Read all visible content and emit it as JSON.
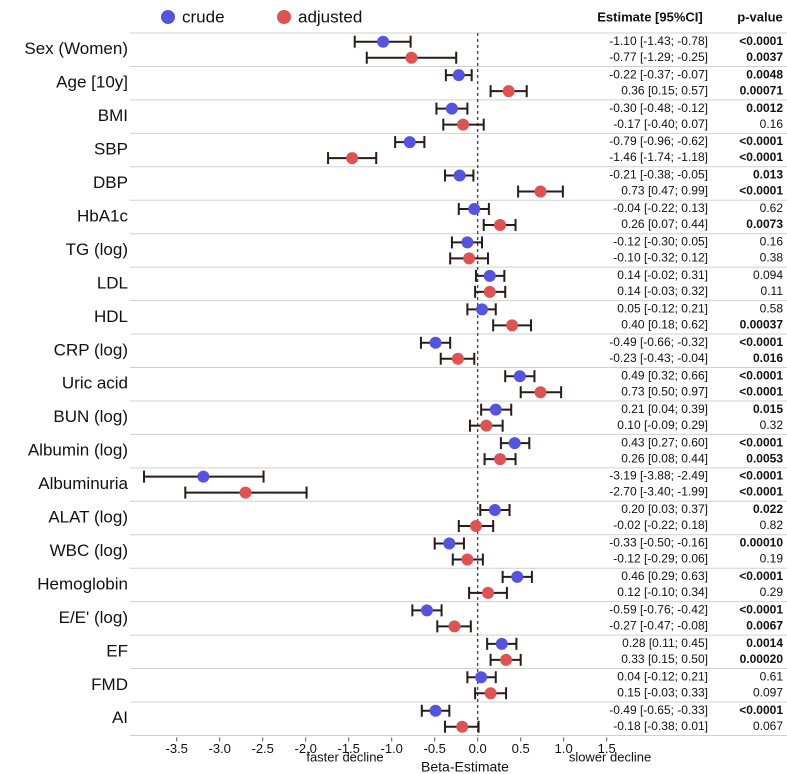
{
  "chart_data": {
    "type": "forest",
    "x_label": "Beta-Estimate",
    "left_note": "faster decline",
    "right_note": "slower decline",
    "table_headers": [
      "Estimate [95%CI]",
      "p-value"
    ],
    "categories": [
      "Sex (Women)",
      "Age [10y]",
      "BMI",
      "SBP",
      "DBP",
      "HbA1c",
      "TG (log)",
      "LDL",
      "HDL",
      "CRP (log)",
      "Uric acid",
      "BUN (log)",
      "Albumin (log)",
      "Albuminuria",
      "ALAT (log)",
      "WBC (log)",
      "Hemoglobin",
      "E/E' (log)",
      "EF",
      "FMD",
      "AI"
    ],
    "xlim": [
      -3.95,
      1.55
    ],
    "xticks": [
      -3.5,
      {
        "value": -3,
        "label": "-3.0"
      },
      -2.5,
      {
        "value": -2,
        "label": "-2.0"
      },
      -1.5,
      {
        "value": -1,
        "label": "-1.0"
      },
      -0.5,
      {
        "value": 0,
        "label": "0.0"
      },
      0.5,
      {
        "value": 1,
        "label": "1.0"
      },
      1.5
    ],
    "reference_line": 0,
    "series": [
      {
        "name": "crude",
        "color": "#5454e0",
        "values": [
          -1.1,
          -0.22,
          -0.3,
          -0.79,
          -0.21,
          -0.04,
          -0.12,
          0.14,
          0.05,
          -0.49,
          0.49,
          0.21,
          0.43,
          -3.19,
          0.2,
          -0.33,
          0.46,
          -0.59,
          0.28,
          0.04,
          -0.49
        ],
        "lower": [
          -1.43,
          -0.37,
          -0.48,
          -0.96,
          -0.38,
          -0.22,
          -0.3,
          -0.02,
          -0.12,
          -0.66,
          0.32,
          0.04,
          0.27,
          -3.88,
          0.03,
          -0.5,
          0.29,
          -0.76,
          0.11,
          -0.12,
          -0.65
        ],
        "upper": [
          -0.78,
          -0.07,
          -0.12,
          -0.62,
          -0.05,
          0.13,
          0.05,
          0.31,
          0.21,
          -0.32,
          0.66,
          0.39,
          0.6,
          -2.49,
          0.37,
          -0.16,
          0.63,
          -0.42,
          0.45,
          0.21,
          -0.33
        ],
        "value_labels": [
          "-1.10 [-1.43; -0.78]",
          "-0.22 [-0.37; -0.07]",
          "-0.30 [-0.48; -0.12]",
          "-0.79 [-0.96; -0.62]",
          "-0.21 [-0.38; -0.05]",
          "-0.04 [-0.22; 0.13]",
          "-0.12 [-0.30; 0.05]",
          "0.14 [-0.02; 0.31]",
          "0.05 [-0.12; 0.21]",
          "-0.49 [-0.66; -0.32]",
          "0.49 [0.32; 0.66]",
          "0.21 [0.04; 0.39]",
          "0.43 [0.27; 0.60]",
          "-3.19 [-3.88; -2.49]",
          "0.20 [0.03; 0.37]",
          "-0.33 [-0.50; -0.16]",
          "0.46 [0.29; 0.63]",
          "-0.59 [-0.76; -0.42]",
          "0.28 [0.11; 0.45]",
          "0.04 [-0.12; 0.21]",
          "-0.49 [-0.65; -0.33]"
        ],
        "p_values": [
          "<0.0001",
          "0.0048",
          "0.0012",
          "<0.0001",
          "0.013",
          "0.62",
          "0.16",
          "0.094",
          "0.58",
          "<0.0001",
          "<0.0001",
          "0.015",
          "<0.0001",
          "<0.0001",
          "0.022",
          "0.00010",
          "<0.0001",
          "<0.0001",
          "0.0014",
          "0.61",
          "<0.0001"
        ]
      },
      {
        "name": "adjusted",
        "color": "#e05252",
        "values": [
          -0.77,
          0.36,
          -0.17,
          -1.46,
          0.73,
          0.26,
          -0.1,
          0.14,
          0.4,
          -0.23,
          0.73,
          0.1,
          0.26,
          -2.7,
          -0.02,
          -0.12,
          0.12,
          -0.27,
          0.33,
          0.15,
          -0.18
        ],
        "lower": [
          -1.29,
          0.15,
          -0.4,
          -1.74,
          0.47,
          0.07,
          -0.32,
          -0.03,
          0.18,
          -0.43,
          0.5,
          -0.09,
          0.08,
          -3.4,
          -0.22,
          -0.29,
          -0.1,
          -0.47,
          0.15,
          -0.03,
          -0.38
        ],
        "upper": [
          -0.25,
          0.57,
          0.07,
          -1.18,
          0.99,
          0.44,
          0.12,
          0.32,
          0.62,
          -0.04,
          0.97,
          0.29,
          0.44,
          -1.99,
          0.18,
          0.06,
          0.34,
          -0.08,
          0.5,
          0.33,
          0.01
        ],
        "value_labels": [
          "-0.77 [-1.29; -0.25]",
          "0.36 [0.15; 0.57]",
          "-0.17 [-0.40; 0.07]",
          "-1.46 [-1.74; -1.18]",
          "0.73 [0.47; 0.99]",
          "0.26 [0.07; 0.44]",
          "-0.10 [-0.32; 0.12]",
          "0.14 [-0.03; 0.32]",
          "0.40 [0.18; 0.62]",
          "-0.23 [-0.43; -0.04]",
          "0.73 [0.50; 0.97]",
          "0.10 [-0.09; 0.29]",
          "0.26 [0.08; 0.44]",
          "-2.70 [-3.40; -1.99]",
          "-0.02 [-0.22; 0.18]",
          "-0.12 [-0.29; 0.06]",
          "0.12 [-0.10; 0.34]",
          "-0.27 [-0.47; -0.08]",
          "0.33 [0.15; 0.50]",
          "0.15 [-0.03; 0.33]",
          "-0.18 [-0.38; 0.01]"
        ],
        "p_values": [
          "0.0037",
          "0.00071",
          "0.16",
          "<0.0001",
          "<0.0001",
          "0.0073",
          "0.38",
          "0.11",
          "0.00037",
          "0.016",
          "<0.0001",
          "0.32",
          "0.0053",
          "<0.0001",
          "0.82",
          "0.19",
          "0.29",
          "0.0067",
          "0.00020",
          "0.097",
          "0.067"
        ]
      }
    ]
  }
}
